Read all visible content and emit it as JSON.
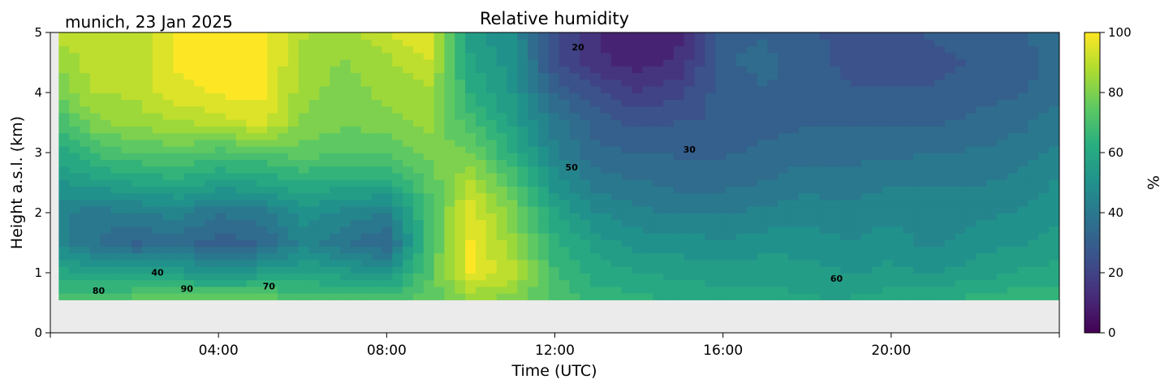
{
  "chart_data": {
    "type": "heatmap",
    "title": "Relative humidity",
    "site_date": "munich, 23 Jan 2025",
    "xlabel": "Time (UTC)",
    "ylabel": "Height a.s.l. (km)",
    "xlim": [
      0,
      24
    ],
    "ylim": [
      0,
      5
    ],
    "x_ticks": [
      {
        "value": 4,
        "label": "04:00"
      },
      {
        "value": 8,
        "label": "08:00"
      },
      {
        "value": 12,
        "label": "12:00"
      },
      {
        "value": 16,
        "label": "16:00"
      },
      {
        "value": 20,
        "label": "20:00"
      }
    ],
    "y_ticks": [
      {
        "value": 0,
        "label": "0"
      },
      {
        "value": 1,
        "label": "1"
      },
      {
        "value": 2,
        "label": "2"
      },
      {
        "value": 3,
        "label": "3"
      },
      {
        "value": 4,
        "label": "4"
      },
      {
        "value": 5,
        "label": "5"
      }
    ],
    "colorbar": {
      "label": "%",
      "range": [
        0,
        100
      ],
      "colormap": "viridis",
      "ticks": [
        {
          "value": 0,
          "label": "0"
        },
        {
          "value": 20,
          "label": "20"
        },
        {
          "value": 40,
          "label": "40"
        },
        {
          "value": 60,
          "label": "60"
        },
        {
          "value": 80,
          "label": "80"
        },
        {
          "value": 100,
          "label": "100"
        }
      ]
    },
    "data_min_height_km": 0.55,
    "no_data_color": "#ebebeb",
    "contour_labels": [
      {
        "text": "80",
        "x": 1.15,
        "y": 0.65
      },
      {
        "text": "40",
        "x": 2.55,
        "y": 0.95
      },
      {
        "text": "90",
        "x": 3.25,
        "y": 0.68
      },
      {
        "text": "70",
        "x": 5.2,
        "y": 0.72
      },
      {
        "text": "20",
        "x": 12.55,
        "y": 4.7
      },
      {
        "text": "50",
        "x": 12.4,
        "y": 2.7
      },
      {
        "text": "30",
        "x": 15.2,
        "y": 3.0
      },
      {
        "text": "60",
        "x": 18.7,
        "y": 0.85
      }
    ],
    "rh_field": {
      "description_heights_km": [
        0.55,
        1.0,
        1.5,
        2.0,
        2.5,
        3.0,
        3.5,
        4.0,
        4.5,
        5.0
      ],
      "times_h": [
        0,
        1,
        2,
        3,
        4,
        5,
        6,
        7,
        8,
        9,
        10,
        11,
        12,
        13,
        14,
        15,
        16,
        17,
        18,
        19,
        20,
        21,
        22,
        23,
        24
      ],
      "values": [
        [
          68,
          60,
          48,
          45,
          50,
          58,
          66,
          75,
          82,
          88
        ],
        [
          72,
          58,
          38,
          40,
          55,
          68,
          80,
          88,
          90,
          92
        ],
        [
          75,
          55,
          32,
          42,
          58,
          72,
          85,
          88,
          90,
          90
        ],
        [
          78,
          56,
          35,
          44,
          60,
          74,
          86,
          96,
          98,
          98
        ],
        [
          78,
          50,
          30,
          38,
          56,
          70,
          90,
          98,
          100,
          100
        ],
        [
          76,
          55,
          32,
          40,
          58,
          72,
          94,
          100,
          100,
          100
        ],
        [
          72,
          58,
          45,
          50,
          62,
          75,
          82,
          84,
          86,
          88
        ],
        [
          70,
          55,
          38,
          46,
          60,
          72,
          78,
          80,
          82,
          84
        ],
        [
          72,
          50,
          32,
          42,
          60,
          74,
          80,
          84,
          86,
          92
        ],
        [
          74,
          72,
          70,
          70,
          74,
          78,
          84,
          86,
          92,
          98
        ],
        [
          82,
          98,
          98,
          96,
          88,
          78,
          70,
          62,
          58,
          55
        ],
        [
          80,
          90,
          84,
          80,
          72,
          62,
          56,
          52,
          50,
          48
        ],
        [
          72,
          68,
          64,
          58,
          50,
          44,
          40,
          32,
          24,
          22
        ],
        [
          65,
          60,
          55,
          48,
          40,
          34,
          30,
          24,
          14,
          12
        ],
        [
          64,
          58,
          50,
          44,
          38,
          32,
          26,
          18,
          10,
          8
        ],
        [
          62,
          56,
          50,
          42,
          36,
          32,
          28,
          22,
          14,
          12
        ],
        [
          60,
          55,
          48,
          42,
          36,
          32,
          28,
          30,
          32,
          32
        ],
        [
          60,
          56,
          50,
          44,
          38,
          34,
          30,
          32,
          34,
          32
        ],
        [
          58,
          55,
          50,
          46,
          40,
          36,
          32,
          30,
          30,
          28
        ],
        [
          58,
          52,
          48,
          44,
          40,
          36,
          32,
          28,
          26,
          26
        ],
        [
          60,
          54,
          50,
          46,
          42,
          36,
          32,
          28,
          24,
          26
        ],
        [
          62,
          52,
          46,
          44,
          42,
          38,
          32,
          28,
          26,
          28
        ],
        [
          64,
          55,
          50,
          46,
          42,
          38,
          34,
          30,
          28,
          30
        ],
        [
          66,
          58,
          52,
          48,
          44,
          40,
          36,
          32,
          30,
          32
        ],
        [
          66,
          60,
          54,
          52,
          48,
          44,
          40,
          36,
          34,
          36
        ]
      ]
    }
  }
}
